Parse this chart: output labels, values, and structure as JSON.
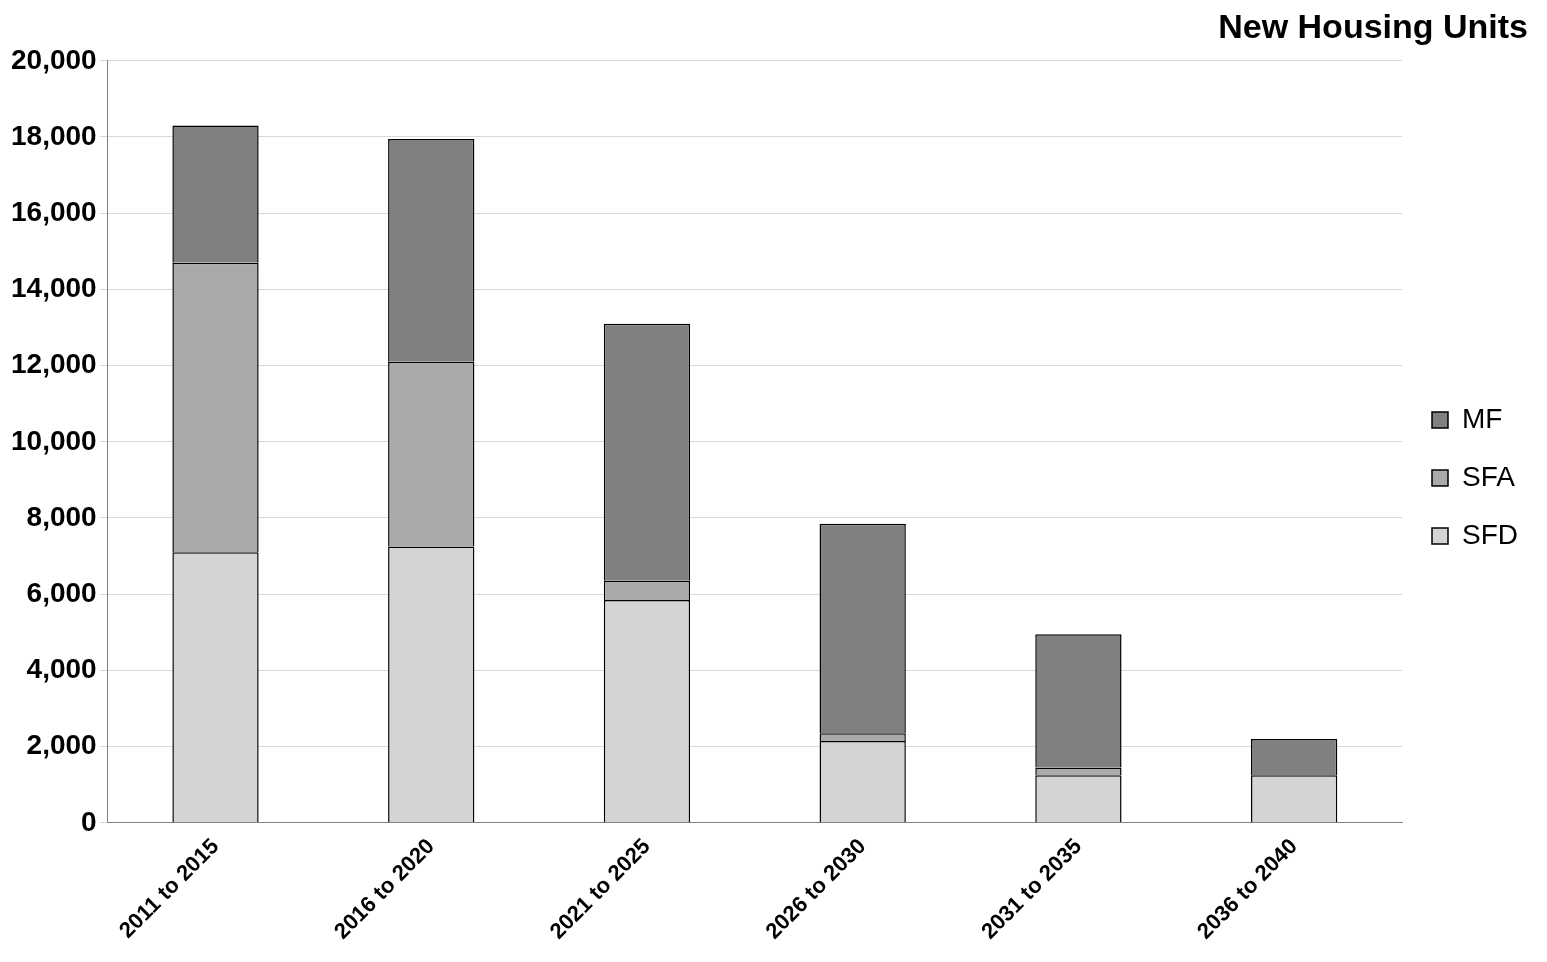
{
  "chart_data": {
    "type": "bar",
    "title": "New Housing Units",
    "stacked": true,
    "categories": [
      "2011 to 2015",
      "2016 to 2020",
      "2021 to 2025",
      "2026 to 2030",
      "2031 to 2035",
      "2036 to 2040"
    ],
    "series": [
      {
        "name": "SFD",
        "color": "#d4d4d4",
        "values": [
          7100,
          7250,
          5850,
          2150,
          1250,
          1250
        ]
      },
      {
        "name": "SFA",
        "color": "#aaaaaa",
        "values": [
          7600,
          4850,
          500,
          200,
          200,
          0
        ]
      },
      {
        "name": "MF",
        "color": "#808080",
        "values": [
          3600,
          5850,
          6750,
          5500,
          3500,
          950
        ]
      }
    ],
    "ylim": [
      0,
      20000
    ],
    "yticks": [
      0,
      {
        "value": 2000,
        "label": "2,000"
      },
      {
        "value": 4000,
        "label": "4,000"
      },
      {
        "value": 6000,
        "label": "6,000"
      },
      {
        "value": 8000,
        "label": "8,000"
      },
      {
        "value": 10000,
        "label": "10,000"
      },
      {
        "value": 12000,
        "label": "12,000"
      },
      {
        "value": 14000,
        "label": "14,000"
      },
      {
        "value": 16000,
        "label": "16,000"
      },
      {
        "value": 18000,
        "label": "18,000"
      },
      {
        "value": 20000,
        "label": "20,000"
      }
    ],
    "grid": "y",
    "legend": "right"
  }
}
